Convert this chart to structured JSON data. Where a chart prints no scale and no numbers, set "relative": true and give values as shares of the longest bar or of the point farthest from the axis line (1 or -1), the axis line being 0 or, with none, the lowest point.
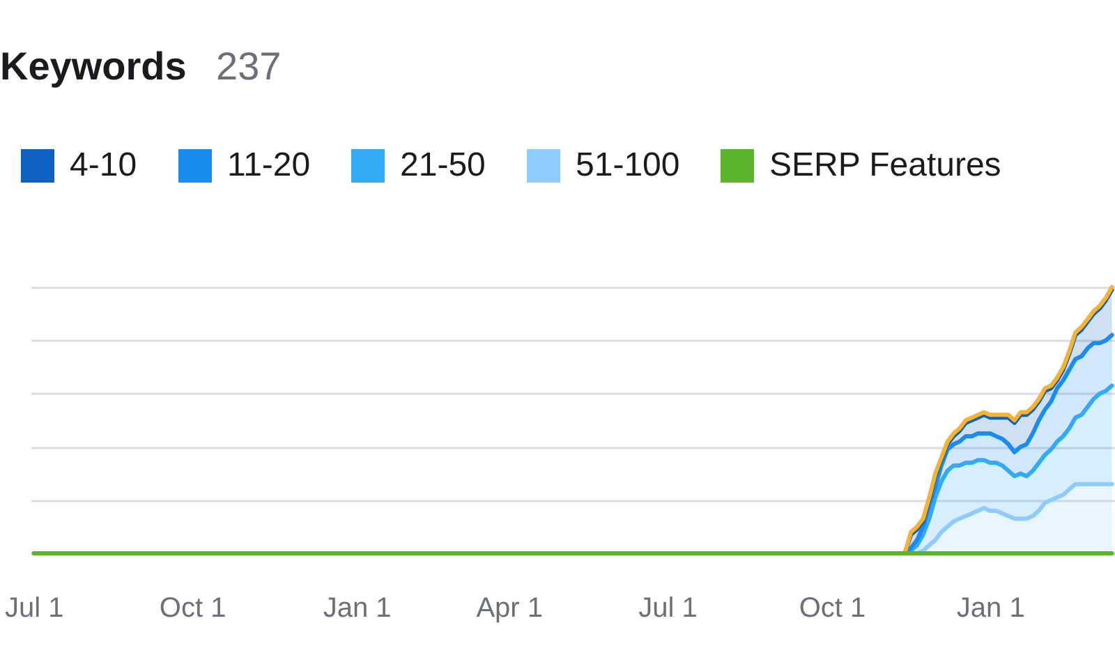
{
  "chart_data": {
    "type": "area",
    "title": "Keywords",
    "subtitle": "237",
    "relative": true,
    "stacked": true,
    "grid": "y",
    "legend": "top",
    "categories": [
      "Jul 1",
      null,
      null,
      null,
      null,
      null,
      null,
      null,
      null,
      null,
      null,
      null,
      null,
      null,
      null,
      null,
      null,
      null,
      null,
      null,
      null,
      null,
      null,
      null,
      null,
      null,
      "Oct 1",
      null,
      null,
      null,
      null,
      null,
      null,
      null,
      null,
      null,
      null,
      null,
      null,
      null,
      null,
      null,
      null,
      null,
      null,
      null,
      null,
      null,
      null,
      null,
      null,
      null,
      null,
      "Jan 1",
      null,
      null,
      null,
      null,
      null,
      null,
      null,
      null,
      null,
      null,
      null,
      null,
      null,
      null,
      null,
      null,
      null,
      null,
      null,
      null,
      null,
      null,
      null,
      null,
      "Apr 1",
      null,
      null,
      null,
      null,
      null,
      null,
      null,
      null,
      null,
      null,
      null,
      null,
      null,
      null,
      null,
      null,
      null,
      null,
      null,
      null,
      null,
      null,
      null,
      null,
      null,
      "Jul 1",
      null,
      null,
      null,
      null,
      null,
      null,
      null,
      null,
      null,
      null,
      null,
      null,
      null,
      null,
      null,
      null,
      null,
      null,
      null,
      null,
      null,
      null,
      null,
      null,
      null,
      null,
      "Oct 1",
      null,
      null,
      null,
      null,
      null,
      null,
      null,
      null,
      null,
      null,
      null,
      null,
      null,
      null,
      null,
      null,
      null,
      null,
      null,
      null,
      null,
      null,
      null,
      null,
      null,
      "Jan 1",
      null,
      null,
      null,
      null,
      null,
      null,
      null,
      null,
      null,
      null,
      null,
      null,
      null,
      null,
      null,
      null,
      null,
      null,
      null,
      null
    ],
    "series": [
      {
        "name": "51-100",
        "color": "#8fcbff",
        "values": [
          null,
          null,
          null,
          null,
          null,
          null,
          null,
          null,
          null,
          null,
          null,
          null,
          null,
          null,
          null,
          null,
          null,
          null,
          null,
          null,
          null,
          null,
          null,
          null,
          null,
          null,
          null,
          null,
          null,
          null,
          null,
          null,
          null,
          null,
          null,
          null,
          null,
          null,
          null,
          null,
          null,
          null,
          null,
          null,
          null,
          null,
          null,
          null,
          null,
          null,
          null,
          null,
          null,
          null,
          null,
          null,
          null,
          null,
          null,
          null,
          null,
          null,
          null,
          null,
          null,
          null,
          null,
          null,
          null,
          null,
          null,
          null,
          null,
          null,
          null,
          null,
          null,
          null,
          null,
          null,
          null,
          null,
          null,
          null,
          null,
          null,
          null,
          null,
          null,
          null,
          null,
          null,
          null,
          null,
          null,
          null,
          null,
          null,
          null,
          null,
          null,
          null,
          null,
          null,
          null,
          null,
          null,
          null,
          null,
          null,
          null,
          null,
          null,
          null,
          null,
          null,
          null,
          null,
          null,
          null,
          null,
          null,
          null,
          null,
          null,
          null,
          null,
          null,
          null,
          null,
          null,
          null,
          null,
          null,
          null,
          null,
          null,
          null,
          null,
          null,
          null,
          null,
          null,
          0,
          0,
          0,
          0.01,
          0.03,
          0.05,
          0.08,
          0.1,
          0.12,
          0.13,
          0.14,
          0.15,
          0.16,
          0.17,
          0.16,
          0.16,
          0.15,
          0.14,
          0.13,
          0.13,
          0.13,
          0.14,
          0.16,
          0.19,
          0.2,
          0.21,
          0.22,
          0.24,
          0.26,
          0.26,
          0.26,
          0.26,
          0.26,
          0.26,
          0.26
        ]
      },
      {
        "name": "21-50",
        "color": "#33aaf5",
        "values": [
          null,
          null,
          null,
          null,
          null,
          null,
          null,
          null,
          null,
          null,
          null,
          null,
          null,
          null,
          null,
          null,
          null,
          null,
          null,
          null,
          null,
          null,
          null,
          null,
          null,
          null,
          null,
          null,
          null,
          null,
          null,
          null,
          null,
          null,
          null,
          null,
          null,
          null,
          null,
          null,
          null,
          null,
          null,
          null,
          null,
          null,
          null,
          null,
          null,
          null,
          null,
          null,
          null,
          null,
          null,
          null,
          null,
          null,
          null,
          null,
          null,
          null,
          null,
          null,
          null,
          null,
          null,
          null,
          null,
          null,
          null,
          null,
          null,
          null,
          null,
          null,
          null,
          null,
          null,
          null,
          null,
          null,
          null,
          null,
          null,
          null,
          null,
          null,
          null,
          null,
          null,
          null,
          null,
          null,
          null,
          null,
          null,
          null,
          null,
          null,
          null,
          null,
          null,
          null,
          null,
          null,
          null,
          null,
          null,
          null,
          null,
          null,
          null,
          null,
          null,
          null,
          null,
          null,
          null,
          null,
          null,
          null,
          null,
          null,
          null,
          null,
          null,
          null,
          null,
          null,
          null,
          null,
          null,
          null,
          null,
          null,
          null,
          null,
          null,
          null,
          null,
          null,
          null,
          0,
          0.01,
          0.03,
          0.06,
          0.1,
          0.16,
          0.19,
          0.21,
          0.21,
          0.2,
          0.2,
          0.19,
          0.19,
          0.18,
          0.18,
          0.18,
          0.18,
          0.17,
          0.16,
          0.17,
          0.16,
          0.17,
          0.18,
          0.18,
          0.19,
          0.21,
          0.22,
          0.23,
          0.25,
          0.26,
          0.29,
          0.32,
          0.34,
          0.35,
          0.37
        ]
      },
      {
        "name": "11-20",
        "color": "#1a8cf0",
        "values": [
          null,
          null,
          null,
          null,
          null,
          null,
          null,
          null,
          null,
          null,
          null,
          null,
          null,
          null,
          null,
          null,
          null,
          null,
          null,
          null,
          null,
          null,
          null,
          null,
          null,
          null,
          null,
          null,
          null,
          null,
          null,
          null,
          null,
          null,
          null,
          null,
          null,
          null,
          null,
          null,
          null,
          null,
          null,
          null,
          null,
          null,
          null,
          null,
          null,
          null,
          null,
          null,
          null,
          null,
          null,
          null,
          null,
          null,
          null,
          null,
          null,
          null,
          null,
          null,
          null,
          null,
          null,
          null,
          null,
          null,
          null,
          null,
          null,
          null,
          null,
          null,
          null,
          null,
          null,
          null,
          null,
          null,
          null,
          null,
          null,
          null,
          null,
          null,
          null,
          null,
          null,
          null,
          null,
          null,
          null,
          null,
          null,
          null,
          null,
          null,
          null,
          null,
          null,
          null,
          null,
          null,
          null,
          null,
          null,
          null,
          null,
          null,
          null,
          null,
          null,
          null,
          null,
          null,
          null,
          null,
          null,
          null,
          null,
          null,
          null,
          null,
          null,
          null,
          null,
          null,
          null,
          null,
          null,
          null,
          null,
          null,
          null,
          null,
          null,
          null,
          null,
          null,
          null,
          0,
          0.01,
          0.02,
          0.03,
          0.05,
          0.04,
          0.06,
          0.08,
          0.08,
          0.09,
          0.1,
          0.1,
          0.1,
          0.1,
          0.11,
          0.1,
          0.1,
          0.1,
          0.09,
          0.1,
          0.12,
          0.14,
          0.16,
          0.17,
          0.18,
          0.2,
          0.21,
          0.22,
          0.22,
          0.22,
          0.22,
          0.21,
          0.19,
          0.19,
          0.19
        ]
      },
      {
        "name": "4-10",
        "color": "#0f62c2",
        "values": [
          null,
          null,
          null,
          null,
          null,
          null,
          null,
          null,
          null,
          null,
          null,
          null,
          null,
          null,
          null,
          null,
          null,
          null,
          null,
          null,
          null,
          null,
          null,
          null,
          null,
          null,
          null,
          null,
          null,
          null,
          null,
          null,
          null,
          null,
          null,
          null,
          null,
          null,
          null,
          null,
          null,
          null,
          null,
          null,
          null,
          null,
          null,
          null,
          null,
          null,
          null,
          null,
          null,
          null,
          null,
          null,
          null,
          null,
          null,
          null,
          null,
          null,
          null,
          null,
          null,
          null,
          null,
          null,
          null,
          null,
          null,
          null,
          null,
          null,
          null,
          null,
          null,
          null,
          null,
          null,
          null,
          null,
          null,
          null,
          null,
          null,
          null,
          null,
          null,
          null,
          null,
          null,
          null,
          null,
          null,
          null,
          null,
          null,
          null,
          null,
          null,
          null,
          null,
          null,
          null,
          null,
          null,
          null,
          null,
          null,
          null,
          null,
          null,
          null,
          null,
          null,
          null,
          null,
          null,
          null,
          null,
          null,
          null,
          null,
          null,
          null,
          null,
          null,
          null,
          null,
          null,
          null,
          null,
          null,
          null,
          null,
          null,
          null,
          null,
          null,
          null,
          null,
          null,
          0,
          0.05,
          0.04,
          0.02,
          0.02,
          0.04,
          0.02,
          0.02,
          0.03,
          0.04,
          0.05,
          0.06,
          0.06,
          0.07,
          0.06,
          0.07,
          0.08,
          0.1,
          0.11,
          0.12,
          0.11,
          0.09,
          0.07,
          0.07,
          0.05,
          0.03,
          0.04,
          0.06,
          0.09,
          0.1,
          0.1,
          0.11,
          0.13,
          0.15,
          0.17
        ]
      },
      {
        "color": "#f5b335",
        "values": [
          null,
          null,
          null,
          null,
          null,
          null,
          null,
          null,
          null,
          null,
          null,
          null,
          null,
          null,
          null,
          null,
          null,
          null,
          null,
          null,
          null,
          null,
          null,
          null,
          null,
          null,
          null,
          null,
          null,
          null,
          null,
          null,
          null,
          null,
          null,
          null,
          null,
          null,
          null,
          null,
          null,
          null,
          null,
          null,
          null,
          null,
          null,
          null,
          null,
          null,
          null,
          null,
          null,
          null,
          null,
          null,
          null,
          null,
          null,
          null,
          null,
          null,
          null,
          null,
          null,
          null,
          null,
          null,
          null,
          null,
          null,
          null,
          null,
          null,
          null,
          null,
          null,
          null,
          null,
          null,
          null,
          null,
          null,
          null,
          null,
          null,
          null,
          null,
          null,
          null,
          null,
          null,
          null,
          null,
          null,
          null,
          null,
          null,
          null,
          null,
          null,
          null,
          null,
          null,
          null,
          null,
          null,
          null,
          null,
          null,
          null,
          null,
          null,
          null,
          null,
          null,
          null,
          null,
          null,
          null,
          null,
          null,
          null,
          null,
          null,
          null,
          null,
          null,
          null,
          null,
          null,
          null,
          null,
          null,
          null,
          null,
          null,
          null,
          null,
          null,
          null,
          null,
          null,
          0,
          0.01,
          0.01,
          0.01,
          0.01,
          0.01,
          0.01,
          0.01,
          0.01,
          0.01,
          0.01,
          0.01,
          0.01,
          0.01,
          0.01,
          0.01,
          0.01,
          0.01,
          0.01,
          0.01,
          0.01,
          0.01,
          0.01,
          0.01,
          0.01,
          0.01,
          0.01,
          0.01,
          0.01,
          0.01,
          0.01,
          0.01,
          0.01,
          0.01,
          0.01
        ]
      },
      {
        "name": "SERP Features",
        "type": "line",
        "color": "#5ab52d",
        "values": [
          0,
          0,
          0,
          0,
          0,
          0,
          0,
          0,
          0,
          0,
          0,
          0,
          0,
          0,
          0,
          0,
          0,
          0,
          0,
          0,
          0,
          0,
          0,
          0,
          0,
          0,
          0,
          0,
          0,
          0,
          0,
          0,
          0,
          0,
          0,
          0,
          0,
          0,
          0,
          0,
          0,
          0,
          0,
          0,
          0,
          0,
          0,
          0,
          0,
          0,
          0,
          0,
          0,
          0,
          0,
          0,
          0,
          0,
          0,
          0,
          0,
          0,
          0,
          0,
          0,
          0,
          0,
          0,
          0,
          0,
          0,
          0,
          0,
          0,
          0,
          0,
          0,
          0,
          0,
          0,
          0,
          0,
          0,
          0,
          0,
          0,
          0,
          0,
          0,
          0,
          0,
          0,
          0,
          0,
          0,
          0,
          0,
          0,
          0,
          0,
          0,
          0,
          0,
          0,
          0,
          0,
          0,
          0,
          0,
          0,
          0,
          0,
          0,
          0,
          0,
          0,
          0,
          0,
          0,
          0,
          0,
          0,
          0,
          0,
          0,
          0,
          0,
          0,
          0,
          0,
          0,
          0,
          0,
          0,
          0,
          0,
          0,
          0,
          0,
          0,
          0,
          0,
          0,
          0,
          0,
          0,
          0,
          0,
          0,
          0,
          0,
          0,
          0,
          0,
          0,
          0,
          0,
          0,
          0,
          0,
          0,
          0,
          0,
          0,
          0,
          0,
          0,
          0,
          0,
          0,
          0,
          0,
          0,
          0,
          0,
          0,
          0,
          0
        ]
      }
    ]
  }
}
